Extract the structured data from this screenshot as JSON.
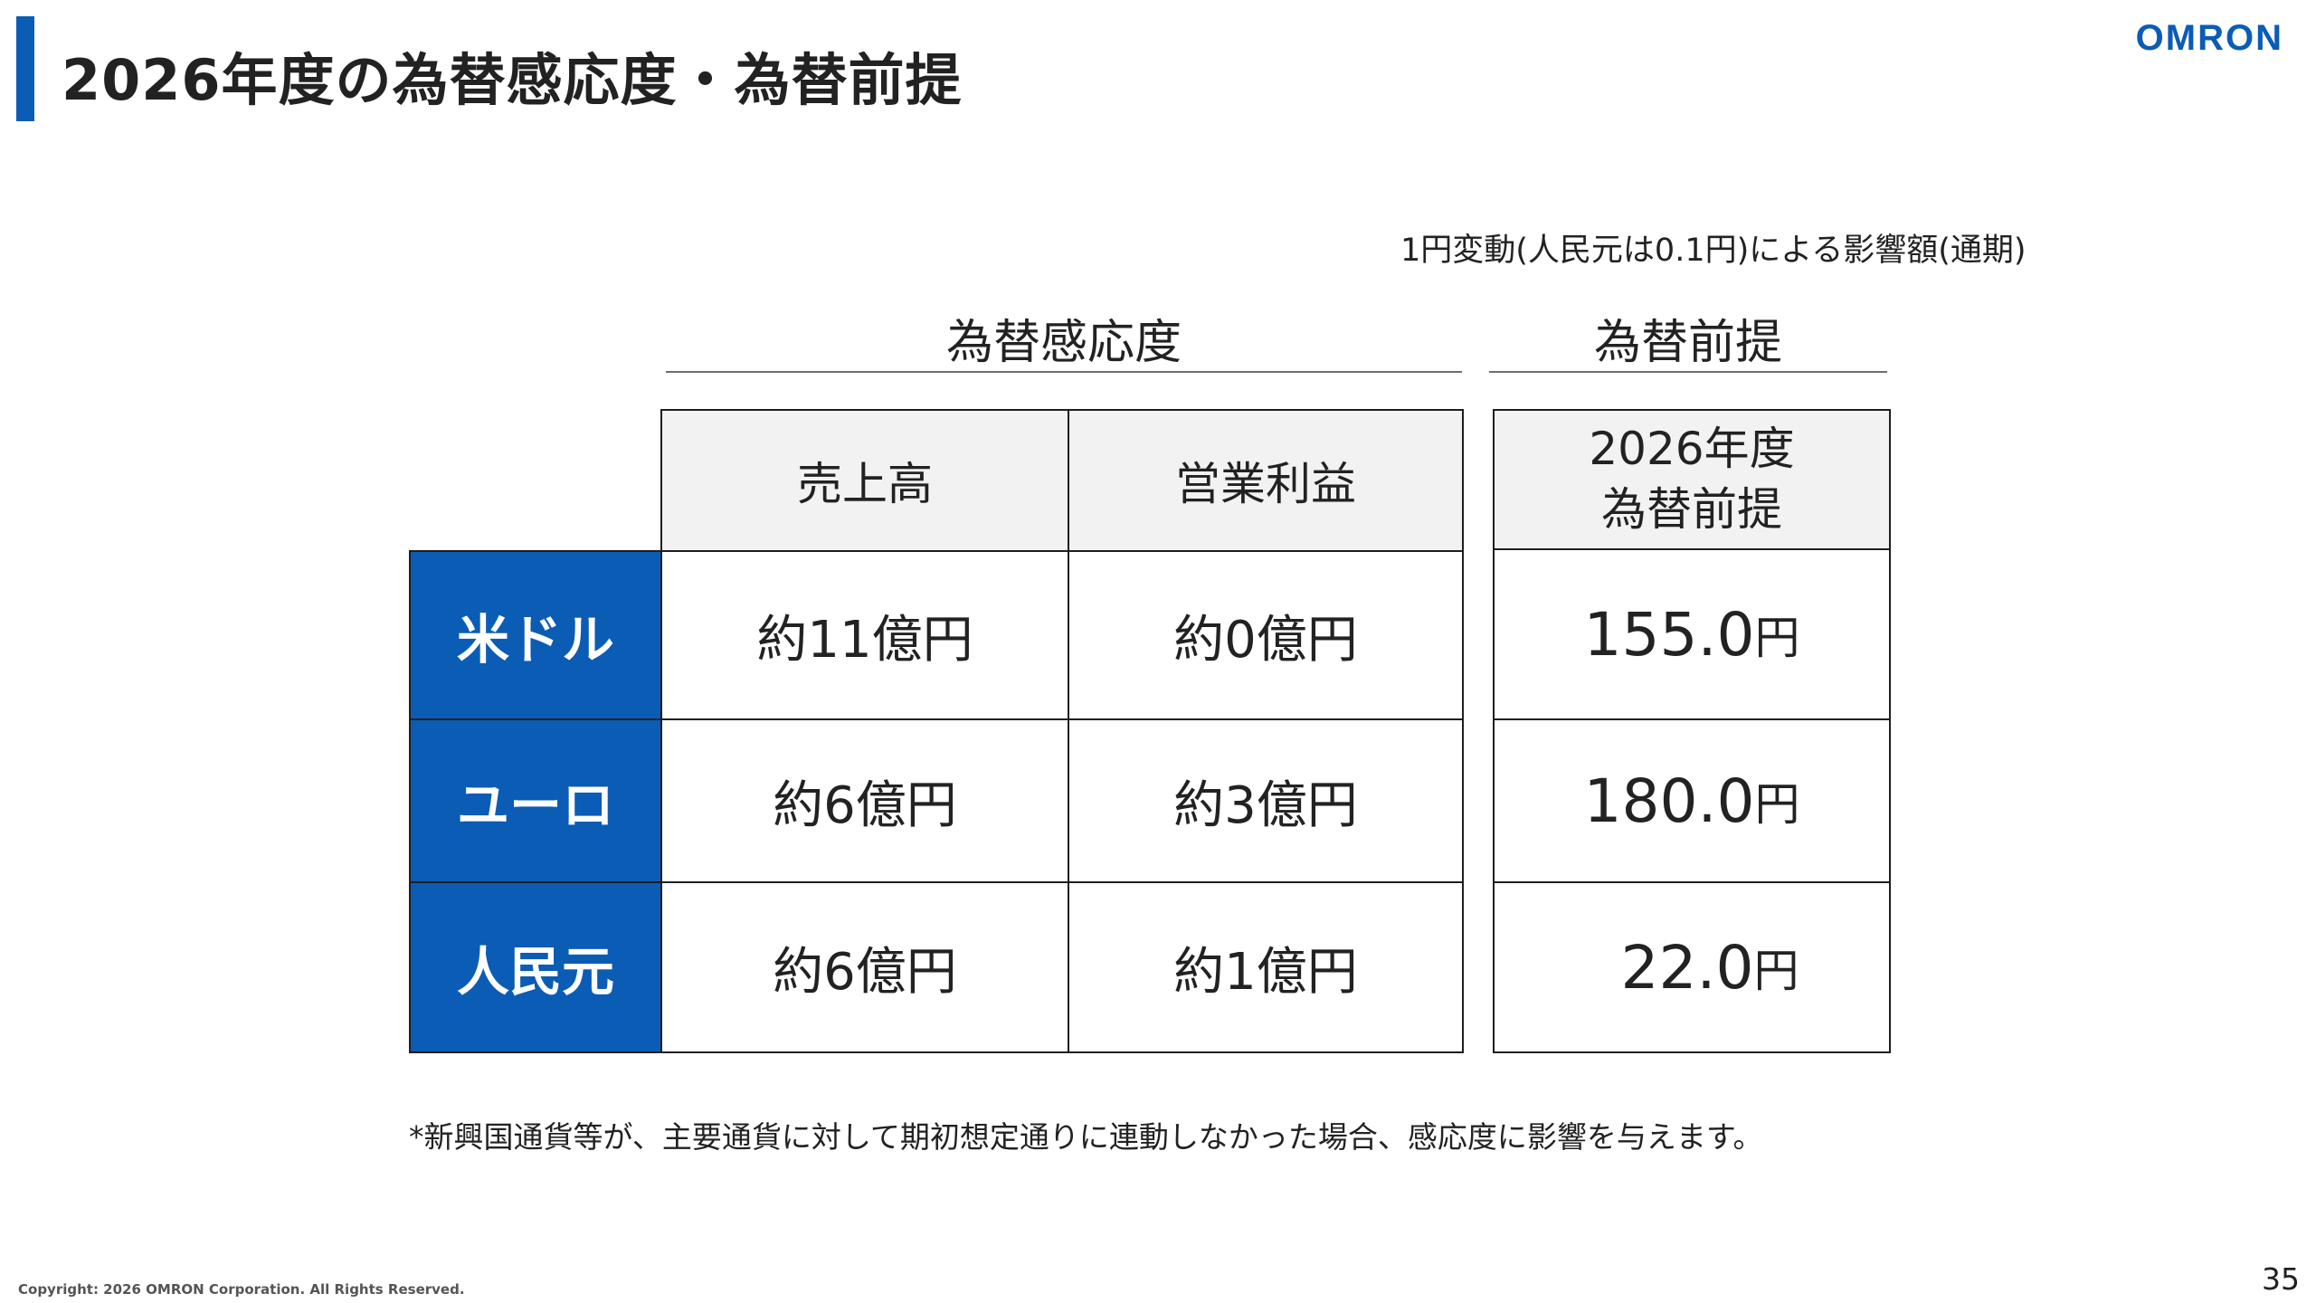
{
  "slide": {
    "title": "2026年度の為替感応度・為替前提",
    "logo": "OMRON",
    "caption": "1円変動(人民元は0.1円)による影響額(通期)",
    "page_number": "35",
    "copyright": "Copyright: 2026 OMRON Corporation. All Rights Reserved.",
    "footnote": "*新興国通貨等が、主要通貨に対して期初想定通りに連動しなかった場合、感応度に影響を与えます。"
  },
  "table": {
    "sensitivity_header": "為替感応度",
    "assumption_header": "為替前提",
    "columns": {
      "sales": "売上高",
      "operating_income": "営業利益",
      "assumption_line1": "2026年度",
      "assumption_line2": "為替前提"
    },
    "rows": [
      {
        "currency": "米ドル",
        "sales": "約11億円",
        "operating_income": "約0億円",
        "rate": "155.0",
        "rate_unit": "円"
      },
      {
        "currency": "ユーロ",
        "sales": "約6億円",
        "operating_income": "約3億円",
        "rate": "180.0",
        "rate_unit": "円"
      },
      {
        "currency": "人民元",
        "sales": "約6億円",
        "operating_income": "約1億円",
        "rate": "22.0",
        "rate_unit": "円"
      }
    ]
  },
  "colors": {
    "accent": "#0b5cb5",
    "header_bg": "#f2f2f2",
    "border": "#1e1e1e"
  }
}
